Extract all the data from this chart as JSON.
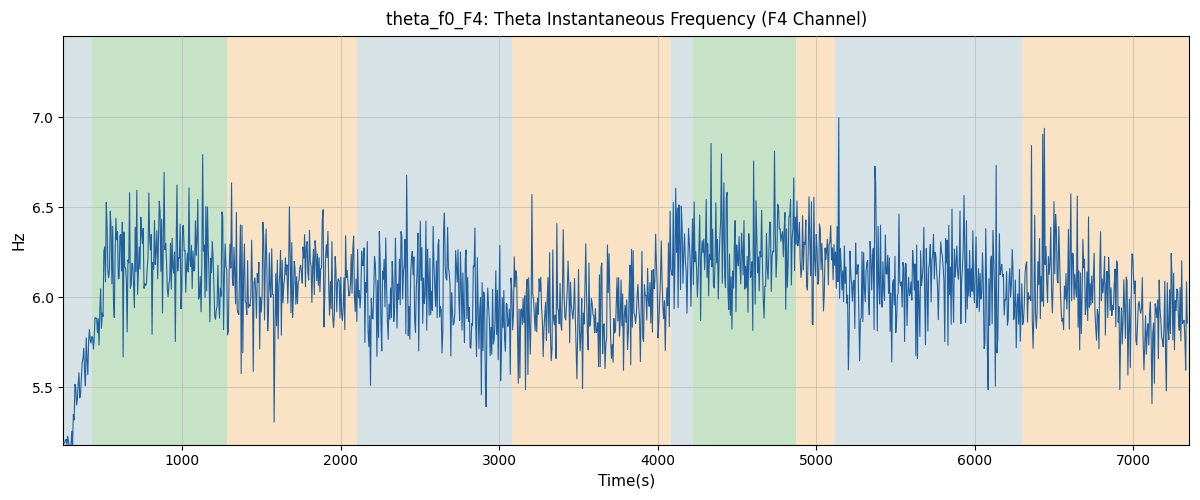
{
  "title": "theta_f0_F4: Theta Instantaneous Frequency (F4 Channel)",
  "xlabel": "Time(s)",
  "ylabel": "Hz",
  "xlim": [
    250,
    7350
  ],
  "ylim": [
    5.18,
    7.45
  ],
  "yticks": [
    5.5,
    6.0,
    6.5,
    7.0
  ],
  "xticks": [
    1000,
    2000,
    3000,
    4000,
    5000,
    6000,
    7000
  ],
  "line_color": "#2060a0",
  "line_width": 0.8,
  "grid_color": "#b0b0b0",
  "background_color": "#ffffff",
  "bands": [
    {
      "start": 250,
      "end": 430,
      "color": "#aec6cf",
      "alpha": 0.5
    },
    {
      "start": 430,
      "end": 1280,
      "color": "#90c990",
      "alpha": 0.5
    },
    {
      "start": 1280,
      "end": 2100,
      "color": "#f5c98a",
      "alpha": 0.5
    },
    {
      "start": 2100,
      "end": 2950,
      "color": "#aec6cf",
      "alpha": 0.5
    },
    {
      "start": 2950,
      "end": 3080,
      "color": "#aec6cf",
      "alpha": 0.5
    },
    {
      "start": 3080,
      "end": 4080,
      "color": "#f5c98a",
      "alpha": 0.5
    },
    {
      "start": 4080,
      "end": 4220,
      "color": "#aec6cf",
      "alpha": 0.5
    },
    {
      "start": 4220,
      "end": 4870,
      "color": "#90c990",
      "alpha": 0.5
    },
    {
      "start": 4870,
      "end": 5120,
      "color": "#f5c98a",
      "alpha": 0.5
    },
    {
      "start": 5120,
      "end": 6300,
      "color": "#aec6cf",
      "alpha": 0.5
    },
    {
      "start": 6300,
      "end": 7350,
      "color": "#f5c98a",
      "alpha": 0.5
    }
  ],
  "seed": 42,
  "n_points": 1400,
  "t_start": 252,
  "t_end": 7340
}
